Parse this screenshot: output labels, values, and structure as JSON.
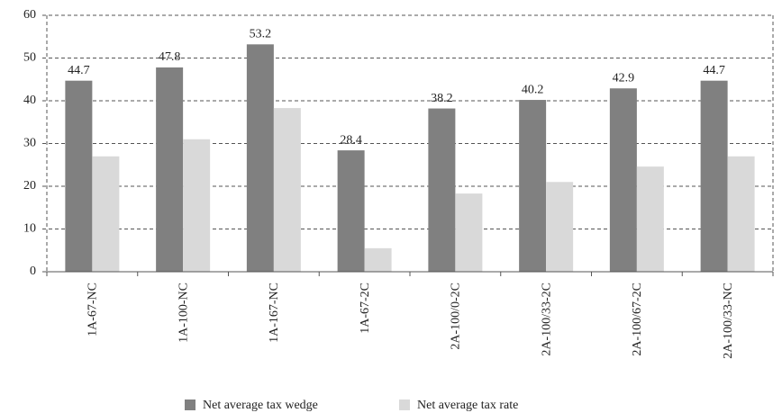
{
  "chart_data": {
    "type": "bar",
    "categories": [
      "1A-67-NC",
      "1A-100-NC",
      "1A-167-NC",
      "1A-67-2C",
      "2A-100/0-2C",
      "2A-100/33-2C",
      "2A-100/67-2C",
      "2A-100/33-NC"
    ],
    "series": [
      {
        "name": "Net average tax wedge",
        "color": "#808080",
        "values": [
          44.7,
          47.8,
          53.2,
          28.4,
          38.2,
          40.2,
          42.9,
          44.7
        ],
        "show_labels": true
      },
      {
        "name": "Net average tax rate",
        "color": "#d9d9d9",
        "values": [
          27,
          31,
          38.3,
          5.5,
          18.3,
          21,
          24.6,
          27
        ],
        "show_labels": false
      }
    ],
    "ylim": [
      0,
      60
    ],
    "yticks": [
      0,
      10,
      20,
      30,
      40,
      50,
      60
    ],
    "grid": true,
    "legend": "bottom"
  }
}
